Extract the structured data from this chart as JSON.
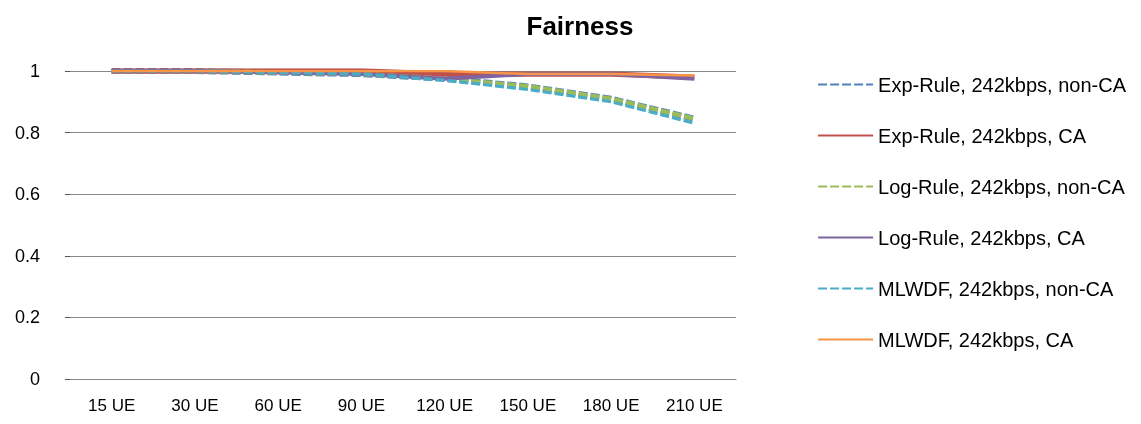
{
  "chart_data": {
    "type": "line",
    "title": "Fairness",
    "categories": [
      "15 UE",
      "30 UE",
      "60 UE",
      "90 UE",
      "120 UE",
      "150 UE",
      "180 UE",
      "210 UE"
    ],
    "series": [
      {
        "name": "Exp-Rule, 242kbps, non-CA",
        "color": "#4f81bd",
        "line_style": "dashed",
        "values": [
          1,
          1,
          0.995,
          0.99,
          0.975,
          0.95,
          0.91,
          0.845
        ]
      },
      {
        "name": "Exp-Rule, 242kbps, CA",
        "color": "#c0504d",
        "line_style": "solid",
        "values": [
          1,
          1,
          1,
          1,
          0.99,
          0.99,
          0.99,
          0.98
        ]
      },
      {
        "name": "Log-Rule, 242kbps, non-CA",
        "color": "#9bbb59",
        "line_style": "dashed",
        "values": [
          1,
          1,
          0.995,
          0.99,
          0.975,
          0.95,
          0.91,
          0.845
        ]
      },
      {
        "name": "Log-Rule, 242kbps, CA",
        "color": "#8064a2",
        "line_style": "solid",
        "values": [
          1,
          1,
          0.995,
          0.99,
          0.975,
          0.99,
          0.99,
          0.975
        ]
      },
      {
        "name": "MLWDF, 242kbps, non-CA",
        "color": "#4bacc6",
        "line_style": "dashed",
        "values": [
          1,
          1,
          0.995,
          0.99,
          0.97,
          0.94,
          0.9,
          0.83
        ]
      },
      {
        "name": "MLWDF, 242kbps, CA",
        "color": "#f79646",
        "line_style": "solid",
        "values": [
          1,
          1,
          1,
          1,
          1,
          0.99,
          0.99,
          0.985
        ]
      }
    ],
    "ylim": [
      0,
      1
    ],
    "yticks": [
      0,
      0.2,
      0.4,
      0.6,
      0.8,
      1
    ],
    "grid": "y",
    "legend": "right",
    "marker": "none"
  }
}
